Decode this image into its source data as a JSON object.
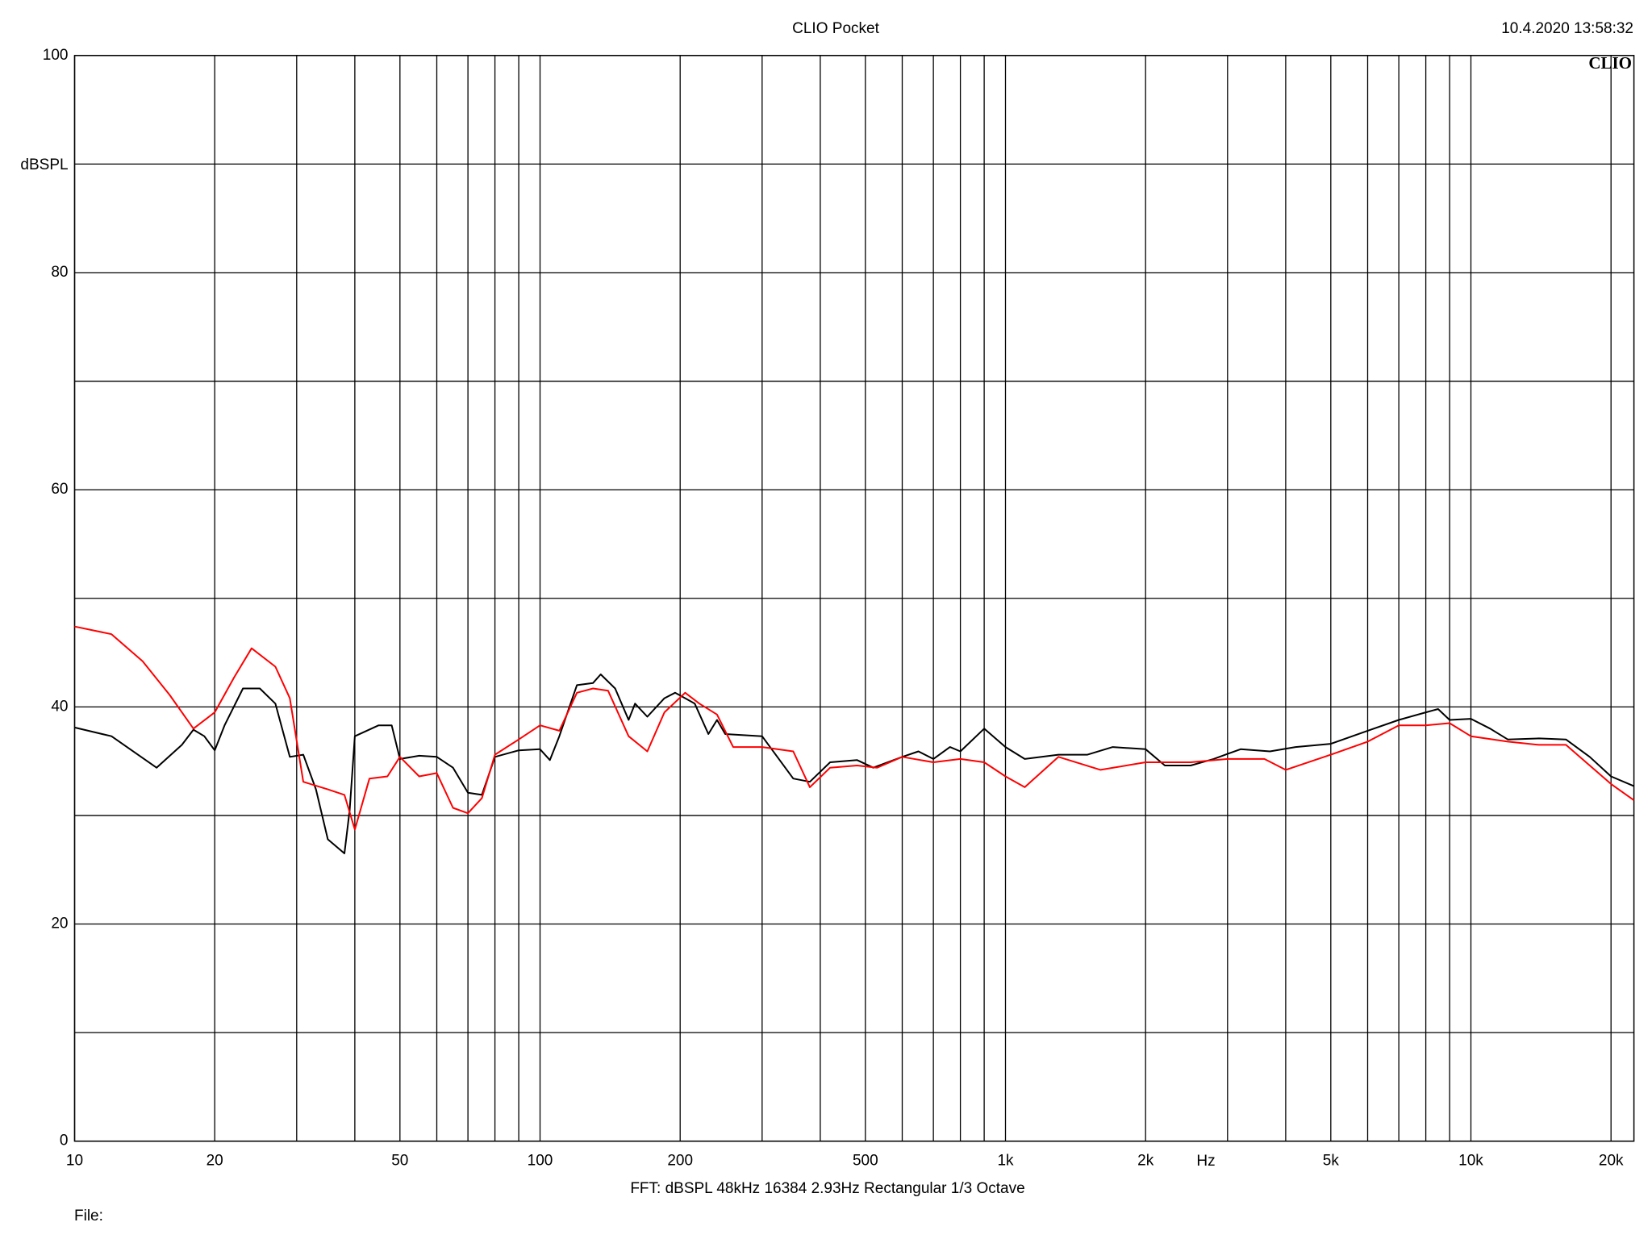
{
  "chart_data": {
    "type": "line",
    "title": "CLIO Pocket",
    "timestamp": "10.4.2020 13:58:32",
    "logo": "CLIO",
    "y_label": "dBSPL",
    "x_label": "Hz",
    "footer": "FFT:  dBSPL  48kHz  16384  2.93Hz  Rectangular  1/3 Octave",
    "file_label": "File:",
    "x_log": true,
    "grid": true,
    "xlim": [
      10,
      22400
    ],
    "ylim": [
      0,
      100
    ],
    "yticks": [
      0,
      20,
      40,
      60,
      80,
      100
    ],
    "ygrid": [
      10,
      30,
      50,
      70,
      90
    ],
    "xticks": [
      10,
      20,
      50,
      100,
      200,
      500,
      {
        "value": 1000,
        "label": "1k"
      },
      {
        "value": 2000,
        "label": "2k"
      },
      {
        "value": 5000,
        "label": "5k"
      },
      {
        "value": 10000,
        "label": "10k"
      },
      {
        "value": 20000,
        "label": "20k"
      }
    ],
    "xgrid": [
      30,
      40,
      60,
      70,
      80,
      90,
      300,
      400,
      600,
      700,
      800,
      900,
      3000,
      4000,
      6000,
      7000,
      8000,
      9000
    ],
    "series": [
      {
        "color": "#000000",
        "x": [
          10,
          12,
          15,
          17,
          18,
          19,
          20,
          21,
          23,
          25,
          27,
          29,
          31,
          33,
          35,
          38,
          39,
          40,
          45,
          48,
          50,
          55,
          60,
          65,
          70,
          75,
          80,
          90,
          100,
          105,
          110,
          120,
          130,
          135,
          145,
          155,
          160,
          170,
          185,
          195,
          205,
          215,
          230,
          240,
          250,
          300,
          350,
          380,
          420,
          480,
          520,
          600,
          650,
          700,
          760,
          800,
          900,
          1000,
          1100,
          1300,
          1500,
          1700,
          2000,
          2200,
          2500,
          2800,
          3200,
          3700,
          4200,
          5000,
          6000,
          7000,
          8000,
          8500,
          9000,
          10000,
          11000,
          12000,
          14000,
          16000,
          18000,
          20000,
          22400
        ],
        "values": [
          38.1,
          37.3,
          34.4,
          36.5,
          37.9,
          37.3,
          36,
          38.3,
          41.7,
          41.7,
          40.3,
          35.4,
          35.6,
          32.4,
          27.8,
          26.5,
          30.5,
          37.3,
          38.3,
          38.3,
          35.2,
          35.5,
          35.4,
          34.4,
          32.1,
          31.9,
          35.4,
          36,
          36.1,
          35.1,
          37.3,
          42,
          42.2,
          43,
          41.7,
          38.8,
          40.3,
          39.1,
          40.8,
          41.3,
          40.8,
          40.3,
          37.5,
          38.8,
          37.5,
          37.3,
          33.4,
          33.1,
          34.9,
          35.1,
          34.4,
          35.4,
          35.9,
          35.2,
          36.3,
          35.9,
          38,
          36.3,
          35.2,
          35.6,
          35.6,
          36.3,
          36.1,
          34.6,
          34.6,
          35.2,
          36.1,
          35.9,
          36.3,
          36.6,
          37.8,
          38.8,
          39.5,
          39.8,
          38.8,
          38.9,
          38,
          37,
          37.1,
          37,
          35.4,
          33.6,
          32.7
        ]
      },
      {
        "color": "#ff0000",
        "x": [
          10,
          12,
          14,
          16,
          18,
          20,
          22,
          24,
          27,
          29,
          31,
          35,
          38,
          40,
          43,
          47,
          50,
          55,
          60,
          65,
          70,
          75,
          80,
          90,
          100,
          110,
          120,
          130,
          140,
          155,
          170,
          185,
          205,
          220,
          240,
          260,
          300,
          350,
          380,
          420,
          480,
          530,
          600,
          700,
          800,
          900,
          1000,
          1100,
          1300,
          1600,
          2000,
          2500,
          3000,
          3600,
          4000,
          5000,
          6000,
          7000,
          8000,
          9000,
          10000,
          12000,
          14000,
          16000,
          18000,
          20000,
          22400
        ],
        "values": [
          47.4,
          46.7,
          44.2,
          41.1,
          38,
          39.5,
          42.7,
          45.4,
          43.7,
          40.8,
          33.1,
          32.4,
          31.9,
          28.7,
          33.4,
          33.6,
          35.4,
          33.6,
          33.9,
          30.7,
          30.2,
          31.6,
          35.6,
          37,
          38.3,
          37.8,
          41.3,
          41.7,
          41.5,
          37.3,
          35.9,
          39.5,
          41.3,
          40.3,
          39.3,
          36.3,
          36.3,
          35.9,
          32.6,
          34.4,
          34.6,
          34.4,
          35.4,
          34.9,
          35.2,
          34.9,
          33.6,
          32.6,
          35.4,
          34.2,
          34.9,
          34.9,
          35.2,
          35.2,
          34.2,
          35.6,
          36.8,
          38.3,
          38.3,
          38.5,
          37.3,
          36.8,
          36.5,
          36.5,
          34.6,
          32.9,
          31.4
        ]
      }
    ]
  }
}
